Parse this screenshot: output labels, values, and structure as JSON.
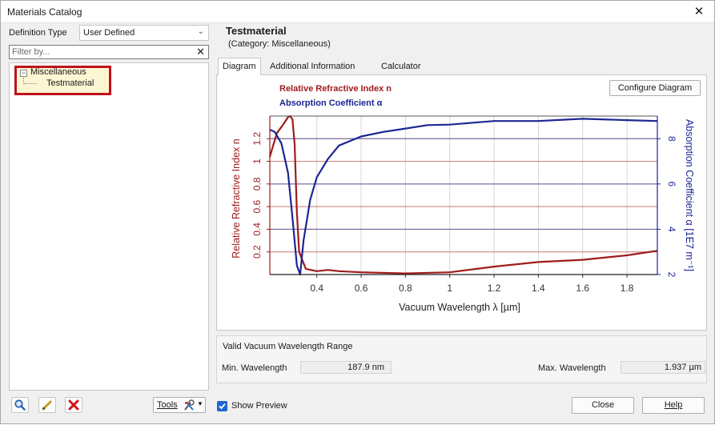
{
  "window": {
    "title": "Materials Catalog",
    "close_glyph": "✕"
  },
  "left": {
    "definition_type_label": "Definition Type",
    "definition_type_value": "User Defined",
    "filter_placeholder": "Filter by...",
    "filter_clear_glyph": "✕",
    "tree": {
      "category": "Miscellaneous",
      "item": "Testmaterial"
    },
    "bottom_icons": [
      "search-icon",
      "edit-pencil-icon",
      "delete-x-icon"
    ],
    "tools_label": "Tools"
  },
  "right": {
    "material_name": "Testmaterial",
    "category_text": "(Category: Miscellaneous)",
    "tabs": [
      "Diagram",
      "Additional Information",
      "Calculator"
    ],
    "active_tab": "Diagram",
    "configure_label": "Configure Diagram",
    "legend": {
      "n": "Relative Refractive Index n",
      "alpha": "Absorption Coefficient α"
    },
    "range": {
      "title": "Valid Vacuum Wavelength Range",
      "min_label": "Min. Wavelength",
      "min_value": "187.9 nm",
      "max_label": "Max. Wavelength",
      "max_value": "1.937 µm"
    }
  },
  "footer": {
    "show_preview_label": "Show Preview",
    "show_preview_checked": true,
    "close_label": "Close",
    "help_label": "Help"
  },
  "colors": {
    "n_series": "#9e1b1b",
    "alpha_series": "#1c2594",
    "highlight": "#c0121d"
  },
  "chart_data": {
    "type": "line",
    "xlabel": "Vacuum Wavelength λ [µm]",
    "ylabel_left": "Relative Refractive Index n",
    "ylabel_right": "Absorption Coefficient α [1E7 m⁻¹]",
    "xlim": [
      0.1879,
      1.937
    ],
    "ylim_left": [
      0,
      1.4
    ],
    "ylim_right": [
      2,
      9
    ],
    "x_ticks": [
      "0.4",
      "0.6",
      "0.8",
      "1",
      "1.2",
      "1.4",
      "1.6",
      "1.8"
    ],
    "y_left_ticks": [
      "0.2",
      "0.4",
      "0.6",
      "0.8",
      "1",
      "1.2"
    ],
    "y_right_ticks": [
      "2",
      "4",
      "6",
      "8"
    ],
    "series": [
      {
        "name": "Relative Refractive Index n",
        "axis": "left",
        "x": [
          0.188,
          0.2,
          0.22,
          0.25,
          0.27,
          0.28,
          0.29,
          0.3,
          0.31,
          0.32,
          0.35,
          0.4,
          0.45,
          0.5,
          0.6,
          0.8,
          1.0,
          1.2,
          1.4,
          1.6,
          1.8,
          1.937
        ],
        "y": [
          1.04,
          1.12,
          1.25,
          1.33,
          1.39,
          1.4,
          1.37,
          1.15,
          0.55,
          0.2,
          0.05,
          0.03,
          0.04,
          0.03,
          0.02,
          0.01,
          0.02,
          0.07,
          0.11,
          0.13,
          0.17,
          0.21
        ]
      },
      {
        "name": "Absorption Coefficient α",
        "axis": "right",
        "x": [
          0.188,
          0.21,
          0.24,
          0.27,
          0.29,
          0.31,
          0.325,
          0.34,
          0.37,
          0.4,
          0.45,
          0.5,
          0.6,
          0.7,
          0.8,
          0.9,
          1.0,
          1.2,
          1.4,
          1.6,
          1.8,
          1.937
        ],
        "y": [
          8.4,
          8.3,
          7.8,
          6.5,
          4.5,
          2.4,
          2.0,
          3.5,
          5.3,
          6.3,
          7.1,
          7.7,
          8.1,
          8.3,
          8.45,
          8.6,
          8.62,
          8.78,
          8.78,
          8.88,
          8.82,
          8.78
        ]
      }
    ]
  }
}
